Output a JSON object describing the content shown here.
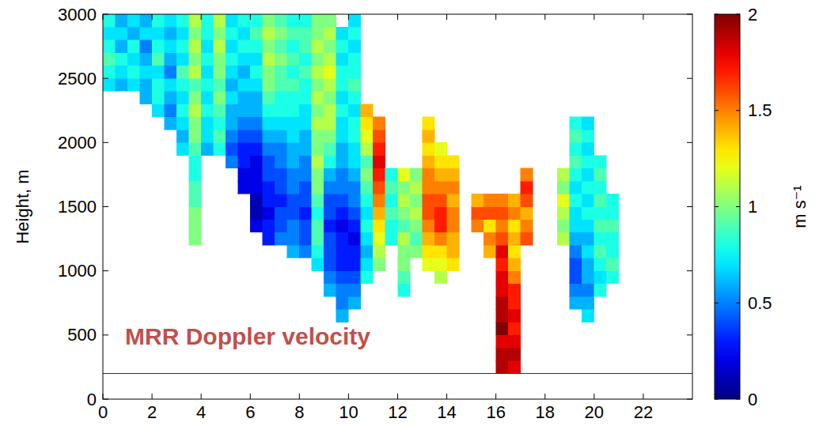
{
  "chart_data": {
    "type": "heatmap",
    "annotation": "MRR Doppler velocity",
    "y_label": "Height, m",
    "xlim": [
      0,
      24
    ],
    "xticks": [
      0,
      2,
      4,
      6,
      8,
      10,
      12,
      14,
      16,
      18,
      20,
      22
    ],
    "ylim": [
      0,
      3000
    ],
    "yticks": [
      0,
      500,
      1000,
      1500,
      2000,
      2500,
      3000
    ],
    "hline": 200,
    "colorbar": {
      "label": "m s⁻¹",
      "lim": [
        0,
        2
      ],
      "ticks": [
        0,
        0.5,
        1,
        1.5,
        2
      ]
    },
    "x_bins": [
      0,
      0.5,
      1,
      1.5,
      2,
      2.5,
      3,
      3.5,
      4,
      4.5,
      5,
      5.5,
      6,
      6.5,
      7,
      7.5,
      8,
      8.5,
      9,
      9.5,
      10,
      10.5,
      11,
      11.5,
      12,
      12.5,
      13,
      13.5,
      14,
      14.5,
      15,
      15.5,
      16,
      16.5,
      17,
      17.5,
      18,
      18.5,
      19,
      19.5,
      20,
      20.5,
      21
    ],
    "y_bins": [
      200,
      300,
      400,
      500,
      600,
      700,
      800,
      900,
      1000,
      1100,
      1200,
      1300,
      1400,
      1500,
      1600,
      1700,
      1800,
      1900,
      2000,
      2100,
      2200,
      2300,
      2400,
      2500,
      2600,
      2700,
      2800,
      2900,
      3000
    ],
    "cells": [
      [
        null,
        null,
        null,
        null,
        null,
        null,
        null,
        null,
        null,
        null,
        null,
        null,
        null,
        null,
        null,
        null,
        null,
        null,
        null,
        null,
        null,
        null,
        0.7,
        0.8,
        0.9,
        0.8,
        0.7,
        0.8
      ],
      [
        null,
        null,
        null,
        null,
        null,
        null,
        null,
        null,
        null,
        null,
        null,
        null,
        null,
        null,
        null,
        null,
        null,
        null,
        null,
        null,
        null,
        null,
        0.6,
        0.7,
        0.8,
        0.6,
        0.7,
        0.6
      ],
      [
        null,
        null,
        null,
        null,
        null,
        null,
        null,
        null,
        null,
        null,
        null,
        null,
        null,
        null,
        null,
        null,
        null,
        null,
        null,
        null,
        null,
        null,
        0.7,
        0.8,
        0.7,
        0.8,
        0.6,
        0.7
      ],
      [
        null,
        null,
        null,
        null,
        null,
        null,
        null,
        null,
        null,
        null,
        null,
        null,
        null,
        null,
        null,
        null,
        null,
        null,
        null,
        null,
        null,
        0.6,
        0.6,
        0.7,
        0.6,
        0.5,
        0.7,
        0.6
      ],
      [
        null,
        null,
        null,
        null,
        null,
        null,
        null,
        null,
        null,
        null,
        null,
        null,
        null,
        null,
        null,
        null,
        null,
        null,
        null,
        null,
        0.7,
        0.8,
        0.8,
        0.7,
        0.9,
        0.8,
        0.7,
        0.8
      ],
      [
        null,
        null,
        null,
        null,
        null,
        null,
        null,
        null,
        null,
        null,
        null,
        null,
        null,
        null,
        null,
        null,
        null,
        null,
        null,
        0.6,
        0.5,
        0.6,
        0.7,
        0.5,
        0.6,
        0.7,
        0.6,
        0.7
      ],
      [
        null,
        null,
        null,
        null,
        null,
        null,
        null,
        null,
        null,
        null,
        null,
        null,
        null,
        null,
        null,
        null,
        null,
        0.7,
        0.6,
        0.7,
        0.8,
        0.7,
        0.8,
        0.9,
        0.7,
        0.8,
        0.7,
        0.8
      ],
      [
        null,
        null,
        null,
        null,
        null,
        null,
        null,
        null,
        null,
        null,
        1.0,
        1.0,
        1.0,
        0.9,
        0.9,
        0.8,
        0.8,
        0.9,
        1.0,
        1.0,
        1.1,
        1.0,
        0.9,
        1.1,
        1.0,
        1.1,
        1.0,
        1.1
      ],
      [
        null,
        null,
        null,
        null,
        null,
        null,
        null,
        null,
        null,
        null,
        null,
        null,
        null,
        null,
        null,
        null,
        null,
        0.6,
        0.7,
        0.7,
        0.8,
        0.7,
        0.8,
        0.7,
        0.8,
        0.7,
        0.8,
        0.8
      ],
      [
        null,
        null,
        null,
        null,
        null,
        null,
        null,
        null,
        null,
        null,
        null,
        null,
        null,
        null,
        null,
        null,
        null,
        0.8,
        0.9,
        0.8,
        0.9,
        1.0,
        0.9,
        1.0,
        1.0,
        1.1,
        1.0,
        1.1
      ],
      [
        null,
        null,
        null,
        null,
        null,
        null,
        null,
        null,
        null,
        null,
        null,
        null,
        null,
        null,
        null,
        null,
        0.5,
        0.4,
        0.5,
        0.6,
        0.6,
        0.7,
        0.6,
        0.7,
        0.8,
        0.7,
        0.8,
        0.7
      ],
      [
        null,
        null,
        null,
        null,
        null,
        null,
        null,
        null,
        null,
        null,
        null,
        null,
        null,
        null,
        0.2,
        0.2,
        0.3,
        0.3,
        0.4,
        0.5,
        0.6,
        0.6,
        0.7,
        0.6,
        0.7,
        0.8,
        0.7,
        0.8
      ],
      [
        null,
        null,
        null,
        null,
        null,
        null,
        null,
        null,
        null,
        null,
        null,
        0.2,
        0.1,
        0.1,
        0.2,
        0.2,
        0.2,
        0.3,
        0.4,
        0.5,
        0.6,
        0.6,
        0.7,
        0.8,
        0.7,
        0.8,
        0.9,
        0.8
      ],
      [
        null,
        null,
        null,
        null,
        null,
        null,
        null,
        null,
        null,
        null,
        0.3,
        0.3,
        0.2,
        0.3,
        0.3,
        0.4,
        0.4,
        0.5,
        0.6,
        0.7,
        0.8,
        0.9,
        1.0,
        1.0,
        1.1,
        1.0,
        1.1,
        1.0
      ],
      [
        null,
        null,
        null,
        null,
        null,
        null,
        null,
        null,
        null,
        null,
        0.5,
        0.4,
        0.4,
        0.3,
        0.4,
        0.4,
        0.5,
        0.5,
        0.6,
        0.7,
        0.8,
        0.8,
        0.9,
        0.9,
        1.0,
        0.9,
        1.0,
        0.9
      ],
      [
        null,
        null,
        null,
        null,
        null,
        null,
        null,
        null,
        null,
        0.6,
        0.5,
        0.5,
        0.4,
        0.4,
        0.5,
        0.5,
        0.6,
        0.6,
        0.7,
        0.7,
        0.8,
        0.8,
        0.9,
        0.8,
        0.9,
        0.8,
        0.9,
        0.8
      ],
      [
        null,
        null,
        null,
        null,
        null,
        null,
        null,
        null,
        null,
        0.5,
        0.4,
        0.4,
        0.3,
        0.4,
        0.4,
        0.5,
        0.5,
        0.6,
        0.6,
        0.7,
        0.7,
        0.8,
        0.8,
        0.9,
        0.8,
        0.9,
        0.9,
        0.8
      ],
      [
        null,
        null,
        null,
        null,
        null,
        null,
        null,
        null,
        0.7,
        0.8,
        0.9,
        0.9,
        0.8,
        0.9,
        1.0,
        1.0,
        1.1,
        1.0,
        1.0,
        1.1,
        1.0,
        1.1,
        1.0,
        1.1,
        1.0,
        1.1,
        1.0,
        1.0
      ],
      [
        null,
        null,
        null,
        null,
        null,
        null,
        0.6,
        0.5,
        0.4,
        0.4,
        0.4,
        0.3,
        0.4,
        0.4,
        0.5,
        0.6,
        0.8,
        0.9,
        1.0,
        1.1,
        1.1,
        1.0,
        1.1,
        1.2,
        1.1,
        1.0,
        1.1,
        1.0
      ],
      [
        null,
        null,
        null,
        null,
        0.6,
        0.5,
        0.5,
        0.4,
        0.3,
        0.3,
        0.3,
        0.2,
        0.3,
        0.4,
        0.5,
        0.5,
        0.6,
        0.6,
        0.7,
        0.7,
        0.8,
        0.7,
        0.8,
        0.8,
        0.7,
        0.8,
        0.7,
        null
      ],
      [
        null,
        null,
        null,
        null,
        null,
        0.6,
        0.5,
        0.4,
        0.3,
        0.3,
        0.2,
        0.3,
        0.4,
        0.5,
        0.5,
        0.6,
        0.7,
        0.7,
        0.8,
        0.8,
        0.7,
        0.8,
        0.9,
        0.8,
        0.8,
        0.7,
        0.8,
        0.7
      ],
      [
        null,
        null,
        null,
        null,
        null,
        null,
        null,
        0.8,
        0.7,
        0.6,
        0.7,
        0.8,
        0.7,
        0.8,
        0.9,
        1.0,
        0.9,
        1.1,
        1.2,
        1.3,
        1.4,
        null,
        null,
        null,
        null,
        null,
        null,
        null
      ],
      [
        null,
        null,
        null,
        null,
        null,
        null,
        null,
        null,
        1.0,
        1.1,
        1.2,
        1.3,
        1.4,
        1.5,
        1.6,
        1.7,
        1.8,
        1.7,
        1.6,
        1.5,
        null,
        null,
        null,
        null,
        null,
        null,
        null,
        null
      ],
      [
        null,
        null,
        null,
        null,
        null,
        null,
        null,
        null,
        null,
        null,
        0.8,
        0.8,
        0.9,
        0.8,
        0.9,
        0.8,
        null,
        null,
        null,
        null,
        null,
        null,
        null,
        null,
        null,
        null,
        null,
        null
      ],
      [
        null,
        null,
        null,
        null,
        null,
        null,
        0.8,
        0.9,
        1.0,
        1.0,
        1.1,
        0.9,
        1.0,
        1.1,
        1.0,
        1.2,
        null,
        null,
        null,
        null,
        null,
        null,
        null,
        null,
        null,
        null,
        null,
        null
      ],
      [
        null,
        null,
        null,
        null,
        null,
        null,
        null,
        null,
        null,
        1.0,
        0.9,
        1.0,
        1.1,
        1.0,
        1.1,
        1.0,
        null,
        null,
        null,
        null,
        null,
        null,
        null,
        null,
        null,
        null,
        null,
        null
      ],
      [
        null,
        null,
        null,
        null,
        null,
        null,
        null,
        null,
        1.2,
        1.3,
        1.4,
        1.5,
        1.6,
        1.6,
        1.5,
        1.5,
        1.4,
        1.3,
        1.4,
        1.3,
        null,
        null,
        null,
        null,
        null,
        null,
        null,
        null
      ],
      [
        null,
        null,
        null,
        null,
        null,
        null,
        null,
        1.1,
        1.2,
        1.3,
        1.5,
        1.7,
        1.7,
        1.6,
        1.5,
        1.4,
        1.3,
        1.2,
        null,
        null,
        null,
        null,
        null,
        null,
        null,
        null,
        null,
        null
      ],
      [
        null,
        null,
        null,
        null,
        null,
        null,
        null,
        null,
        1.3,
        1.4,
        1.4,
        1.5,
        1.5,
        1.4,
        1.5,
        1.4,
        1.3,
        null,
        null,
        null,
        null,
        null,
        null,
        null,
        null,
        null,
        null,
        null
      ],
      [
        null,
        null,
        null,
        null,
        null,
        null,
        null,
        null,
        null,
        null,
        null,
        null,
        null,
        null,
        null,
        null,
        null,
        null,
        null,
        null,
        null,
        null,
        null,
        null,
        null,
        null,
        null,
        null
      ],
      [
        null,
        null,
        null,
        null,
        null,
        null,
        null,
        null,
        null,
        null,
        null,
        1.5,
        1.6,
        1.4,
        null,
        null,
        null,
        null,
        null,
        null,
        null,
        null,
        null,
        null,
        null,
        null,
        null,
        null
      ],
      [
        null,
        null,
        null,
        null,
        null,
        null,
        null,
        null,
        null,
        1.4,
        1.5,
        1.3,
        1.6,
        1.5,
        null,
        null,
        null,
        null,
        null,
        null,
        null,
        null,
        null,
        null,
        null,
        null,
        null,
        null
      ],
      [
        1.9,
        1.9,
        1.8,
        2.0,
        1.9,
        1.9,
        1.8,
        1.8,
        1.7,
        1.8,
        1.6,
        1.5,
        1.6,
        1.5,
        null,
        null,
        null,
        null,
        null,
        null,
        null,
        null,
        null,
        null,
        null,
        null,
        null,
        null
      ],
      [
        1.8,
        1.9,
        1.8,
        1.7,
        1.8,
        1.7,
        1.7,
        1.5,
        1.4,
        1.3,
        1.4,
        1.3,
        1.5,
        1.4,
        null,
        null,
        null,
        null,
        null,
        null,
        null,
        null,
        null,
        null,
        null,
        null,
        null,
        null
      ],
      [
        null,
        null,
        null,
        null,
        null,
        null,
        null,
        null,
        null,
        null,
        1.6,
        1.5,
        1.4,
        1.6,
        1.7,
        1.5,
        null,
        null,
        null,
        null,
        null,
        null,
        null,
        null,
        null,
        null,
        null,
        null
      ],
      [
        null,
        null,
        null,
        null,
        null,
        null,
        null,
        null,
        null,
        null,
        null,
        null,
        null,
        null,
        null,
        null,
        null,
        null,
        null,
        null,
        null,
        null,
        null,
        null,
        null,
        null,
        null,
        null
      ],
      [
        null,
        null,
        null,
        null,
        null,
        null,
        null,
        null,
        null,
        null,
        null,
        null,
        null,
        null,
        null,
        null,
        null,
        null,
        null,
        null,
        null,
        null,
        null,
        null,
        null,
        null,
        null,
        null
      ],
      [
        null,
        null,
        null,
        null,
        null,
        null,
        null,
        null,
        null,
        null,
        1.1,
        1.0,
        1.1,
        1.2,
        1.0,
        1.1,
        null,
        null,
        null,
        null,
        null,
        null,
        null,
        null,
        null,
        null,
        null,
        null
      ],
      [
        null,
        null,
        null,
        null,
        null,
        0.6,
        0.5,
        0.4,
        0.4,
        0.5,
        0.6,
        0.7,
        0.7,
        0.8,
        0.7,
        0.8,
        0.9,
        0.8,
        0.9,
        0.8,
        null,
        null,
        null,
        null,
        null,
        null,
        null,
        null
      ],
      [
        null,
        null,
        null,
        null,
        0.7,
        0.6,
        0.5,
        0.6,
        0.6,
        0.7,
        0.6,
        0.7,
        0.8,
        0.7,
        0.8,
        0.7,
        0.8,
        0.7,
        0.8,
        0.7,
        null,
        null,
        null,
        null,
        null,
        null,
        null,
        null
      ],
      [
        null,
        null,
        null,
        null,
        null,
        null,
        0.8,
        0.7,
        0.8,
        0.9,
        0.8,
        0.9,
        0.8,
        0.9,
        0.8,
        0.9,
        0.8,
        null,
        null,
        null,
        null,
        null,
        null,
        null,
        null,
        null,
        null,
        null
      ],
      [
        null,
        null,
        null,
        null,
        null,
        null,
        null,
        0.8,
        0.9,
        0.8,
        0.8,
        0.9,
        0.8,
        0.8,
        null,
        null,
        null,
        null,
        null,
        null,
        null,
        null,
        null,
        null,
        null,
        null,
        null,
        null
      ]
    ]
  }
}
